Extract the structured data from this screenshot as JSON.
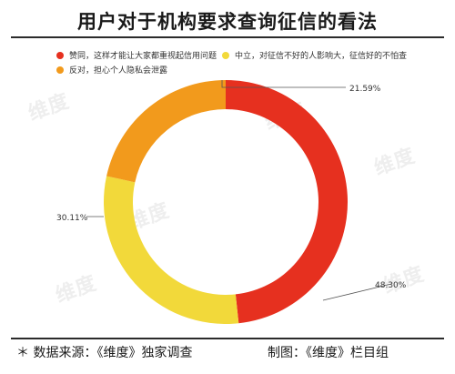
{
  "title": "用户对于机构要求查询征信的看法",
  "footer": {
    "source": "＊ 数据来源：《维度》独家调查",
    "credit": "制图：《维度》栏目组"
  },
  "watermark": {
    "text": "维度"
  },
  "colors": {
    "red": "#e6301f",
    "yellow": "#f2d93a",
    "orange": "#f29a1c"
  },
  "chart_data": {
    "type": "pie",
    "donut": true,
    "title": "用户对于机构要求查询征信的看法",
    "legend_position": "top",
    "series": [
      {
        "name": "赞同，这样才能让大家都重视起信用问题",
        "value": 48.3,
        "label": "48.30%",
        "color": "#e6301f"
      },
      {
        "name": "中立，对征信不好的人影响大，征信好的不怕查",
        "value": 30.11,
        "label": "30.11%",
        "color": "#f2d93a"
      },
      {
        "name": "反对，担心个人隐私会泄露",
        "value": 21.59,
        "label": "21.59%",
        "color": "#f29a1c"
      }
    ]
  }
}
